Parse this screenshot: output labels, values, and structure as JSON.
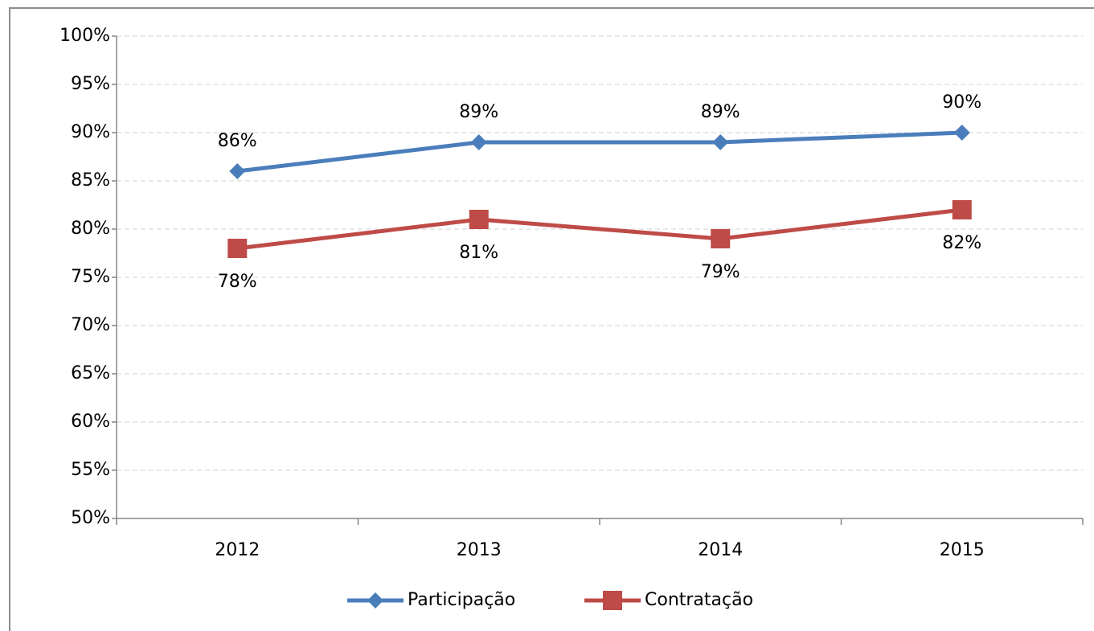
{
  "chart_data": {
    "type": "line",
    "categories": [
      "2012",
      "2013",
      "2014",
      "2015"
    ],
    "series": [
      {
        "name": "Participação",
        "color": "#4a7ebb",
        "marker": "diamond",
        "values": [
          86,
          89,
          89,
          90
        ],
        "value_labels": [
          "86%",
          "89%",
          "89%",
          "90%"
        ]
      },
      {
        "name": "Contratação",
        "color": "#be4b48",
        "marker": "square",
        "values": [
          78,
          81,
          79,
          82
        ],
        "value_labels": [
          "78%",
          "81%",
          "79%",
          "82%"
        ]
      }
    ],
    "ylim": [
      50,
      100
    ],
    "yticks": [
      {
        "value": 50,
        "label": "50%"
      },
      {
        "value": 55,
        "label": "55%"
      },
      {
        "value": 60,
        "label": "60%"
      },
      {
        "value": 65,
        "label": "65%"
      },
      {
        "value": 70,
        "label": "70%"
      },
      {
        "value": 75,
        "label": "75%"
      },
      {
        "value": 80,
        "label": "80%"
      },
      {
        "value": 85,
        "label": "85%"
      },
      {
        "value": 90,
        "label": "90%"
      },
      {
        "value": 95,
        "label": "95%"
      },
      {
        "value": 100,
        "label": "100%"
      }
    ],
    "grid": true,
    "legend": "bottom"
  }
}
